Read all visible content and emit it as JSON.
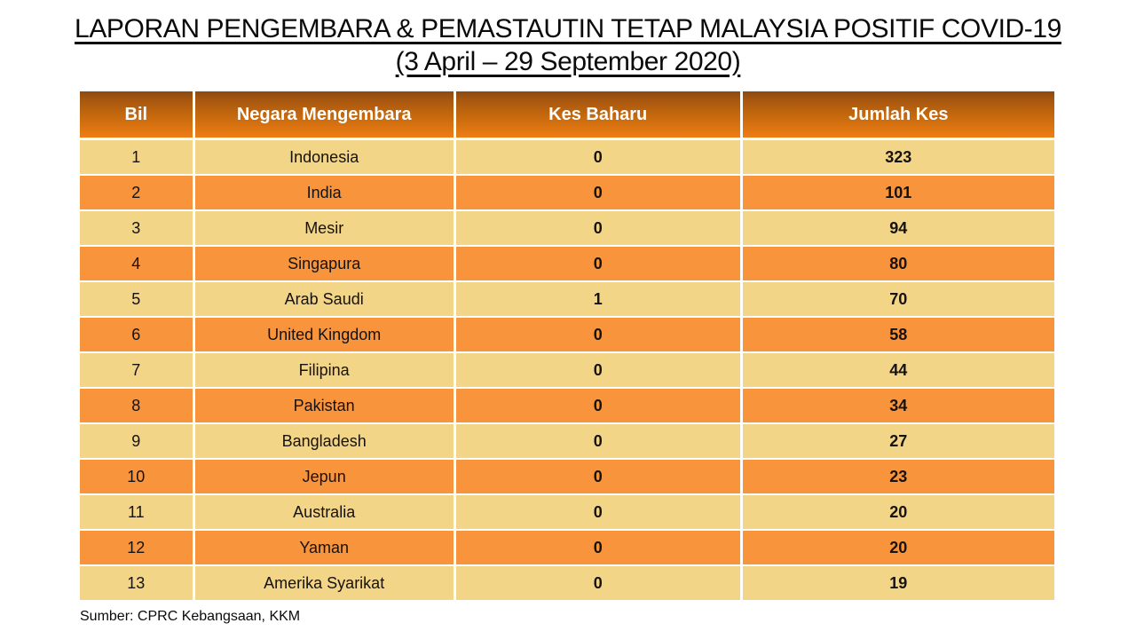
{
  "title": {
    "line1": "LAPORAN PENGEMBARA & PEMASTAUTIN TETAP MALAYSIA POSITIF COVID-19",
    "line2": "(3 April – 29 September 2020)"
  },
  "table": {
    "headers": [
      "Bil",
      "Negara Mengembara",
      "Kes Baharu",
      "Jumlah Kes"
    ],
    "rows": [
      {
        "bil": "1",
        "negara": "Indonesia",
        "kes_baharu": "0",
        "jumlah_kes": "323"
      },
      {
        "bil": "2",
        "negara": "India",
        "kes_baharu": "0",
        "jumlah_kes": "101"
      },
      {
        "bil": "3",
        "negara": "Mesir",
        "kes_baharu": "0",
        "jumlah_kes": "94"
      },
      {
        "bil": "4",
        "negara": "Singapura",
        "kes_baharu": "0",
        "jumlah_kes": "80"
      },
      {
        "bil": "5",
        "negara": "Arab Saudi",
        "kes_baharu": "1",
        "jumlah_kes": "70"
      },
      {
        "bil": "6",
        "negara": "United Kingdom",
        "kes_baharu": "0",
        "jumlah_kes": "58"
      },
      {
        "bil": "7",
        "negara": "Filipina",
        "kes_baharu": "0",
        "jumlah_kes": "44"
      },
      {
        "bil": "8",
        "negara": "Pakistan",
        "kes_baharu": "0",
        "jumlah_kes": "34"
      },
      {
        "bil": "9",
        "negara": "Bangladesh",
        "kes_baharu": "0",
        "jumlah_kes": "27"
      },
      {
        "bil": "10",
        "negara": "Jepun",
        "kes_baharu": "0",
        "jumlah_kes": "23"
      },
      {
        "bil": "11",
        "negara": "Australia",
        "kes_baharu": "0",
        "jumlah_kes": "20"
      },
      {
        "bil": "12",
        "negara": "Yaman",
        "kes_baharu": "0",
        "jumlah_kes": "20"
      },
      {
        "bil": "13",
        "negara": "Amerika Syarikat",
        "kes_baharu": "0",
        "jumlah_kes": "19"
      }
    ]
  },
  "footer": {
    "source": "Sumber: CPRC Kebangsaan, KKM"
  },
  "colors": {
    "header_gradient_top": "#8a4a12",
    "header_gradient_bottom": "#ef7d15",
    "row_band_light": "#f2d586",
    "row_band_orange": "#f7943c",
    "header_text": "#ffffff",
    "body_text": "#161210"
  }
}
